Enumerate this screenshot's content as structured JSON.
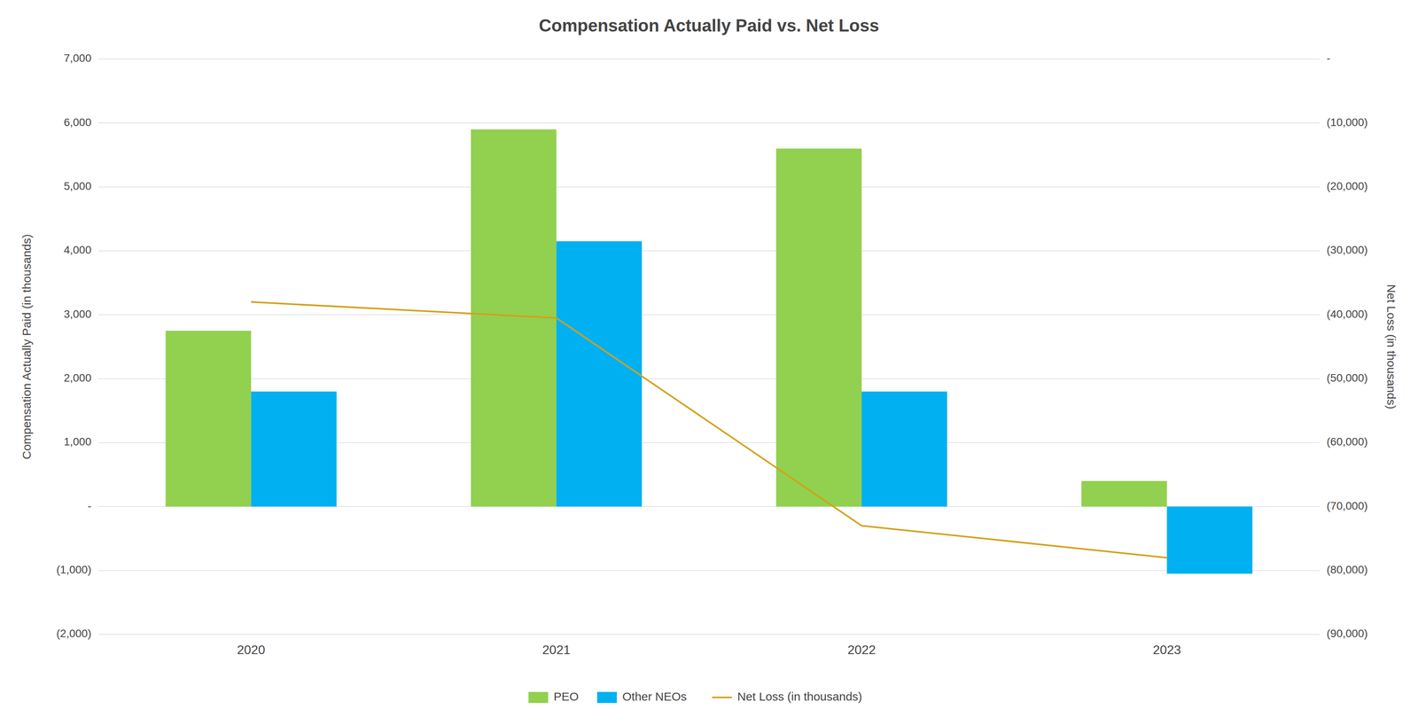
{
  "chart_data": {
    "type": "bar",
    "title": "Compensation Actually Paid vs. Net Loss",
    "categories": [
      "2020",
      "2021",
      "2022",
      "2023"
    ],
    "series": [
      {
        "name": "PEO",
        "color": "#92d050",
        "values": [
          2750,
          5900,
          5600,
          400
        ]
      },
      {
        "name": "Other NEOs",
        "color": "#00b0f0",
        "values": [
          1800,
          4150,
          1800,
          -1050
        ]
      },
      {
        "name": "Net Loss (in thousands)",
        "color": "#d4a017",
        "values": [
          -38000,
          -40500,
          -73000,
          -78000
        ],
        "type": "line",
        "axis": "y2"
      }
    ],
    "ylabel": "Compensation Actually Paid (in thousands)",
    "y2label": "Net Loss (in thousands)",
    "ylim": [
      -2000,
      7000
    ],
    "yticks": [
      {
        "value": -2000,
        "label": "(2,000)"
      },
      {
        "value": -1000,
        "label": "(1,000)"
      },
      {
        "value": 0,
        "label": "-"
      },
      {
        "value": 1000,
        "label": "1,000"
      },
      {
        "value": 2000,
        "label": "2,000"
      },
      {
        "value": 3000,
        "label": "3,000"
      },
      {
        "value": 4000,
        "label": "4,000"
      },
      {
        "value": 5000,
        "label": "5,000"
      },
      {
        "value": 6000,
        "label": "6,000"
      },
      {
        "value": 7000,
        "label": "7,000"
      }
    ],
    "y2lim": [
      -90000,
      0
    ],
    "y2ticks": [
      {
        "value": 0,
        "label": "-"
      },
      {
        "value": -10000,
        "label": "(10,000)"
      },
      {
        "value": -20000,
        "label": "(20,000)"
      },
      {
        "value": -30000,
        "label": "(30,000)"
      },
      {
        "value": -40000,
        "label": "(40,000)"
      },
      {
        "value": -50000,
        "label": "(50,000)"
      },
      {
        "value": -60000,
        "label": "(60,000)"
      },
      {
        "value": -70000,
        "label": "(70,000)"
      },
      {
        "value": -80000,
        "label": "(80,000)"
      },
      {
        "value": -90000,
        "label": "(90,000)"
      }
    ],
    "grid": true,
    "legend": "bottom"
  }
}
